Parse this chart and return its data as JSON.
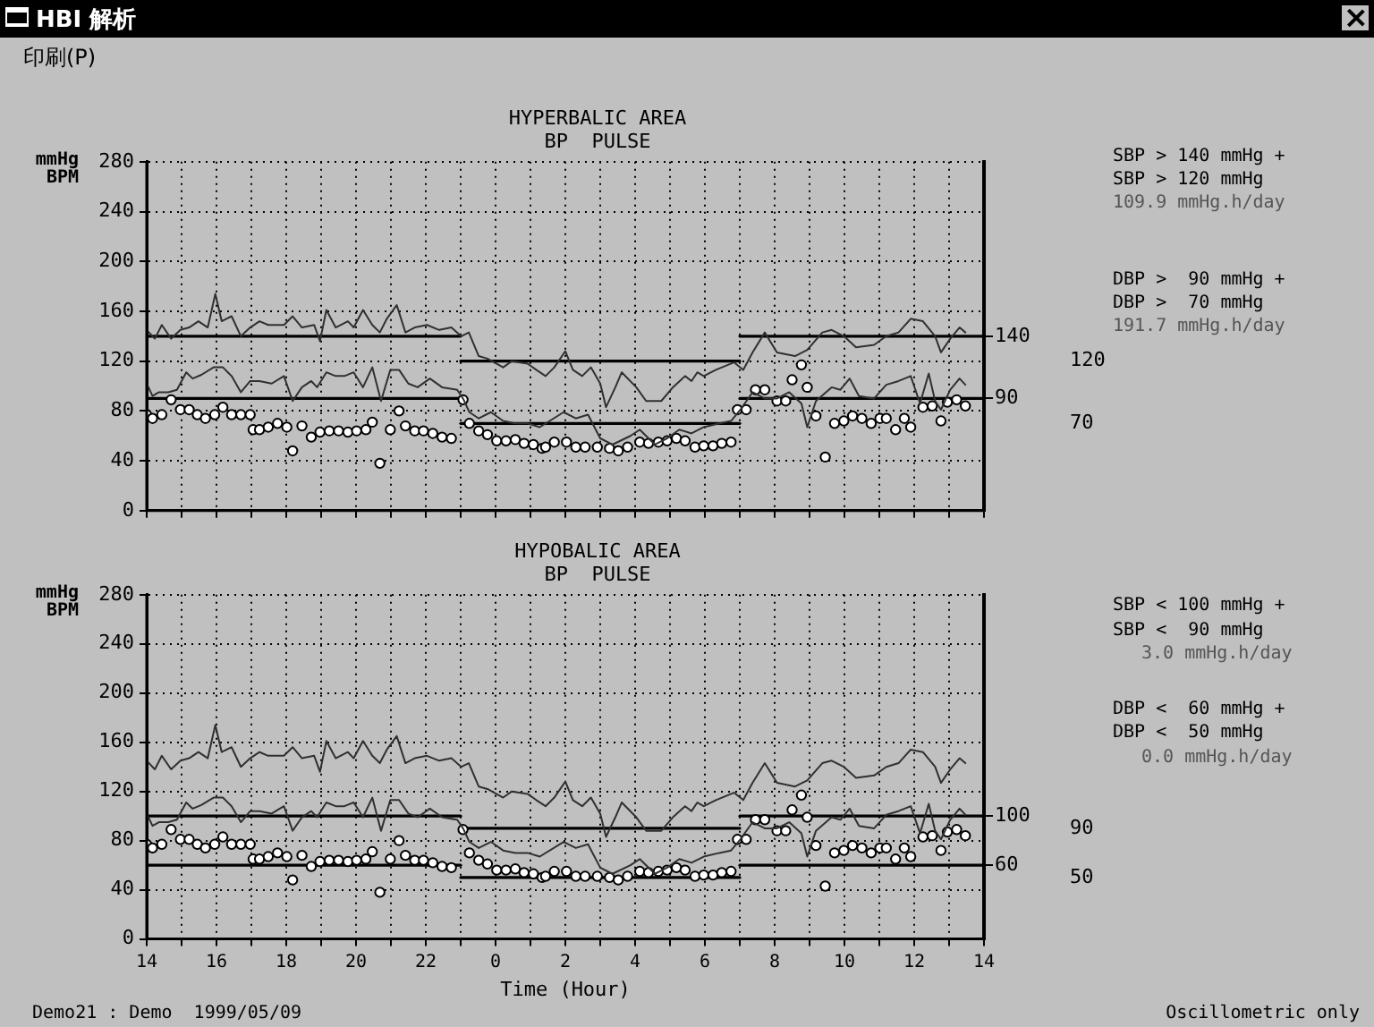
{
  "chart_data": [
    {
      "type": "line",
      "title": "HYPERBALIC AREA",
      "subtitle": "BP  PULSE",
      "ylabel": "mmHg BPM",
      "annotations": [
        "HBI 解析",
        "印刷(P)",
        "SBP > 140 mmHg +",
        "SBP > 120 mmHg",
        "109.9 mmHg.h/day",
        "DBP >  90 mmHg +",
        "DBP >  70 mmHg",
        "191.7 mmHg.h/day"
      ],
      "xlim": [
        "1999-05-09T14:00",
        "1999-05-10T14:00"
      ],
      "xticks": [
        {
          "value": "1999-05-09T14:00",
          "label": null
        },
        {
          "value": "1999-05-09T15:00",
          "label": null
        },
        {
          "value": "1999-05-09T16:00",
          "label": null
        },
        {
          "value": "1999-05-09T17:00",
          "label": null
        },
        {
          "value": "1999-05-09T18:00",
          "label": null
        },
        {
          "value": "1999-05-09T19:00",
          "label": null
        },
        {
          "value": "1999-05-09T20:00",
          "label": null
        },
        {
          "value": "1999-05-09T21:00",
          "label": null
        },
        {
          "value": "1999-05-09T22:00",
          "label": null
        },
        {
          "value": "1999-05-09T23:00",
          "label": null
        },
        {
          "value": "1999-05-10T00:00",
          "label": null
        },
        {
          "value": "1999-05-10T01:00",
          "label": null
        },
        {
          "value": "1999-05-10T02:00",
          "label": null
        },
        {
          "value": "1999-05-10T03:00",
          "label": null
        },
        {
          "value": "1999-05-10T04:00",
          "label": null
        },
        {
          "value": "1999-05-10T05:00",
          "label": null
        },
        {
          "value": "1999-05-10T06:00",
          "label": null
        },
        {
          "value": "1999-05-10T07:00",
          "label": null
        },
        {
          "value": "1999-05-10T08:00",
          "label": null
        },
        {
          "value": "1999-05-10T09:00",
          "label": null
        },
        {
          "value": "1999-05-10T10:00",
          "label": null
        },
        {
          "value": "1999-05-10T11:00",
          "label": null
        },
        {
          "value": "1999-05-10T12:00",
          "label": null
        },
        {
          "value": "1999-05-10T13:00",
          "label": null
        },
        {
          "value": "1999-05-10T14:00",
          "label": null
        }
      ],
      "ylim": [
        0,
        280
      ],
      "yticks": [
        0,
        40,
        80,
        120,
        160,
        200,
        240,
        280
      ],
      "y2lim": [
        0,
        280
      ],
      "y2ticks": [
        140,
        90
      ],
      "y3lim": [
        0,
        280
      ],
      "y3ticks": [
        120,
        70
      ],
      "grid": true,
      "legend": false,
      "tick_labels": "y",
      "series": [
        {
          "type": "line",
          "color": "#303030",
          "x": [
            "1999-05-09T14:00",
            "1999-05-09T14:14",
            "1999-05-09T14:26",
            "1999-05-09T14:42",
            "1999-05-09T14:58",
            "1999-05-09T15:13",
            "1999-05-09T15:29",
            "1999-05-09T15:45",
            "1999-05-09T15:58",
            "1999-05-09T16:09",
            "1999-05-09T16:26",
            "1999-05-09T16:42",
            "1999-05-09T16:58",
            "1999-05-09T17:14",
            "1999-05-09T17:29",
            "1999-05-09T17:56",
            "1999-05-09T18:11",
            "1999-05-09T18:27",
            "1999-05-09T18:48",
            "1999-05-09T18:58",
            "1999-05-09T19:09",
            "1999-05-09T19:25",
            "1999-05-09T19:46",
            "1999-05-09T19:56",
            "1999-05-09T20:12",
            "1999-05-09T20:28",
            "1999-05-09T20:41",
            "1999-05-09T20:53",
            "1999-05-09T21:10",
            "1999-05-09T21:25",
            "1999-05-09T21:41",
            "1999-05-09T22:02",
            "1999-05-09T22:23",
            "1999-05-09T22:44",
            "1999-05-09T23:01",
            "1999-05-09T23:14",
            "1999-05-09T23:31",
            "1999-05-09T23:46",
            "1999-05-10T00:13",
            "1999-05-10T00:28",
            "1999-05-10T00:55",
            "1999-05-10T01:10",
            "1999-05-10T01:26",
            "1999-05-10T01:41",
            "1999-05-10T02:00",
            "1999-05-10T02:13",
            "1999-05-10T02:29",
            "1999-05-10T02:44",
            "1999-05-10T03:00",
            "1999-05-10T03:10",
            "1999-05-10T03:26",
            "1999-05-10T03:37",
            "1999-05-10T04:02",
            "1999-05-10T04:19",
            "1999-05-10T04:45",
            "1999-05-10T05:05",
            "1999-05-10T05:26",
            "1999-05-10T05:37",
            "1999-05-10T05:47",
            "1999-05-10T05:58",
            "1999-05-10T06:19",
            "1999-05-10T06:50",
            "1999-05-10T07:06",
            "1999-05-10T07:22",
            "1999-05-10T07:43",
            "1999-05-10T08:04",
            "1999-05-10T08:35",
            "1999-05-10T08:56",
            "1999-05-10T09:22",
            "1999-05-10T09:38",
            "1999-05-10T09:59",
            "1999-05-10T10:20",
            "1999-05-10T10:51",
            "1999-05-10T11:12",
            "1999-05-10T11:33",
            "1999-05-10T11:54",
            "1999-05-10T12:15",
            "1999-05-10T12:36",
            "1999-05-10T12:46",
            "1999-05-10T13:02",
            "1999-05-10T13:18",
            "1999-05-10T13:28"
          ],
          "values": [
            145,
            138,
            149,
            138,
            145,
            147,
            152,
            147,
            174,
            152,
            156,
            140,
            147,
            152,
            149,
            149,
            156,
            147,
            149,
            136,
            161,
            147,
            152,
            147,
            161,
            149,
            143,
            154,
            165,
            143,
            147,
            149,
            145,
            147,
            140,
            143,
            124,
            122,
            115,
            120,
            118,
            113,
            108,
            115,
            128,
            113,
            108,
            115,
            102,
            83,
            99,
            111,
            99,
            88,
            88,
            99,
            108,
            104,
            111,
            108,
            113,
            119,
            113,
            127,
            143,
            127,
            124,
            129,
            143,
            145,
            140,
            131,
            133,
            140,
            143,
            154,
            152,
            140,
            127,
            138,
            147,
            143
          ]
        },
        {
          "type": "line",
          "color": "#303030",
          "x": [
            "1999-05-09T14:00",
            "1999-05-09T14:10",
            "1999-05-09T14:21",
            "1999-05-09T14:37",
            "1999-05-09T14:52",
            "1999-05-09T15:08",
            "1999-05-09T15:19",
            "1999-05-09T15:34",
            "1999-05-09T15:55",
            "1999-05-09T16:11",
            "1999-05-09T16:26",
            "1999-05-09T16:42",
            "1999-05-09T16:58",
            "1999-05-09T17:14",
            "1999-05-09T17:35",
            "1999-05-09T17:56",
            "1999-05-09T18:11",
            "1999-05-09T18:27",
            "1999-05-09T18:43",
            "1999-05-09T18:53",
            "1999-05-09T19:09",
            "1999-05-09T19:25",
            "1999-05-09T19:40",
            "1999-05-09T19:56",
            "1999-05-09T20:12",
            "1999-05-09T20:28",
            "1999-05-09T20:43",
            "1999-05-09T20:59",
            "1999-05-09T21:14",
            "1999-05-09T21:30",
            "1999-05-09T21:46",
            "1999-05-09T22:07",
            "1999-05-09T22:28",
            "1999-05-09T22:54",
            "1999-05-09T23:04",
            "1999-05-09T23:15",
            "1999-05-09T23:31",
            "1999-05-09T23:52",
            "1999-05-10T00:13",
            "1999-05-10T00:34",
            "1999-05-10T00:55",
            "1999-05-10T01:16",
            "1999-05-10T01:57",
            "1999-05-10T02:18",
            "1999-05-10T02:39",
            "1999-05-10T03:00",
            "1999-05-10T03:21",
            "1999-05-10T03:52",
            "1999-05-10T04:08",
            "1999-05-10T04:34",
            "1999-05-10T04:55",
            "1999-05-10T05:16",
            "1999-05-10T05:37",
            "1999-05-10T05:58",
            "1999-05-10T06:25",
            "1999-05-10T06:45",
            "1999-05-10T07:01",
            "1999-05-10T07:22",
            "1999-05-10T07:43",
            "1999-05-10T08:04",
            "1999-05-10T08:25",
            "1999-05-10T08:46",
            "1999-05-10T08:56",
            "1999-05-10T09:11",
            "1999-05-10T09:38",
            "1999-05-10T09:53",
            "1999-05-10T10:09",
            "1999-05-10T10:25",
            "1999-05-10T10:51",
            "1999-05-10T11:12",
            "1999-05-10T11:33",
            "1999-05-10T11:54",
            "1999-05-10T12:10",
            "1999-05-10T12:25",
            "1999-05-10T12:36",
            "1999-05-10T12:46",
            "1999-05-10T13:02",
            "1999-05-10T13:18",
            "1999-05-10T13:28"
          ],
          "values": [
            102,
            92,
            95,
            95,
            97,
            111,
            106,
            109,
            115,
            115,
            108,
            95,
            104,
            104,
            102,
            108,
            88,
            99,
            104,
            99,
            111,
            108,
            108,
            111,
            99,
            115,
            88,
            113,
            113,
            102,
            99,
            106,
            99,
            97,
            90,
            79,
            74,
            79,
            72,
            70,
            70,
            67,
            79,
            74,
            77,
            58,
            53,
            60,
            65,
            53,
            58,
            65,
            62,
            67,
            70,
            72,
            81,
            95,
            90,
            90,
            95,
            86,
            67,
            88,
            99,
            97,
            106,
            92,
            90,
            101,
            104,
            108,
            86,
            110,
            88,
            81,
            97,
            106,
            101
          ]
        },
        {
          "type": "scatter",
          "color": "#000000",
          "marker": "circle",
          "x": [
            "1999-05-09T14:00",
            "1999-05-09T14:10",
            "1999-05-09T14:26",
            "1999-05-09T14:42",
            "1999-05-09T14:58",
            "1999-05-09T15:13",
            "1999-05-09T15:27",
            "1999-05-09T15:41",
            "1999-05-09T15:57",
            "1999-05-09T16:11",
            "1999-05-09T16:26",
            "1999-05-09T16:42",
            "1999-05-09T16:58",
            "1999-05-09T17:03",
            "1999-05-09T17:14",
            "1999-05-09T17:29",
            "1999-05-09T17:45",
            "1999-05-09T18:01",
            "1999-05-09T18:11",
            "1999-05-09T18:27",
            "1999-05-09T18:43",
            "1999-05-09T18:58",
            "1999-05-09T19:14",
            "1999-05-09T19:30",
            "1999-05-09T19:46",
            "1999-05-09T20:01",
            "1999-05-09T20:17",
            "1999-05-09T20:28",
            "1999-05-09T20:41",
            "1999-05-09T20:59",
            "1999-05-09T21:14",
            "1999-05-09T21:25",
            "1999-05-09T21:41",
            "1999-05-09T21:56",
            "1999-05-09T22:12",
            "1999-05-09T22:28",
            "1999-05-09T22:44",
            "1999-05-09T23:04",
            "1999-05-09T23:15",
            "1999-05-09T23:31",
            "1999-05-09T23:46",
            "1999-05-10T00:02",
            "1999-05-10T00:18",
            "1999-05-10T00:34",
            "1999-05-10T00:49",
            "1999-05-10T01:05",
            "1999-05-10T01:20",
            "1999-05-10T01:26",
            "1999-05-10T01:41",
            "1999-05-10T02:02",
            "1999-05-10T02:18",
            "1999-05-10T02:34",
            "1999-05-10T02:55",
            "1999-05-10T03:16",
            "1999-05-10T03:31",
            "1999-05-10T03:47",
            "1999-05-10T04:08",
            "1999-05-10T04:23",
            "1999-05-10T04:40",
            "1999-05-10T04:55",
            "1999-05-10T05:11",
            "1999-05-10T05:26",
            "1999-05-10T05:43",
            "1999-05-10T05:58",
            "1999-05-10T06:14",
            "1999-05-10T06:29",
            "1999-05-10T06:45",
            "1999-05-10T06:56",
            "1999-05-10T07:11",
            "1999-05-10T07:27",
            "1999-05-10T07:43",
            "1999-05-10T08:04",
            "1999-05-10T08:19",
            "1999-05-10T08:30",
            "1999-05-10T08:46",
            "1999-05-10T08:56",
            "1999-05-10T09:11",
            "1999-05-10T09:27",
            "1999-05-10T09:43",
            "1999-05-10T09:59",
            "1999-05-10T10:14",
            "1999-05-10T10:30",
            "1999-05-10T10:46",
            "1999-05-10T11:01",
            "1999-05-10T11:12",
            "1999-05-10T11:28",
            "1999-05-10T11:43",
            "1999-05-10T11:54",
            "1999-05-10T12:15",
            "1999-05-10T12:31",
            "1999-05-10T12:46",
            "1999-05-10T12:57",
            "1999-05-10T13:13",
            "1999-05-10T13:28"
          ],
          "values": [
            77,
            74,
            77,
            89,
            81,
            81,
            77,
            74,
            77,
            83,
            77,
            77,
            77,
            65,
            65,
            67,
            70,
            67,
            48,
            68,
            59,
            63,
            64,
            64,
            63,
            64,
            65,
            71,
            38,
            65,
            80,
            68,
            64,
            64,
            62,
            59,
            58,
            89,
            70,
            64,
            61,
            56,
            56,
            57,
            54,
            53,
            50,
            51,
            55,
            55,
            51,
            51,
            51,
            50,
            48,
            51,
            55,
            54,
            55,
            56,
            58,
            56,
            51,
            52,
            52,
            54,
            55,
            81,
            81,
            97,
            97,
            88,
            88,
            105,
            117,
            99,
            76,
            43,
            70,
            72,
            76,
            74,
            70,
            74,
            74,
            65,
            74,
            67,
            83,
            84,
            72,
            87,
            89,
            84
          ]
        },
        {
          "type": "line",
          "color": "#000000",
          "x": [
            "1999-05-09T14:00",
            "1999-05-09T23:00"
          ],
          "values": [
            140,
            140
          ]
        },
        {
          "type": "line",
          "color": "#000000",
          "x": [
            "1999-05-09T23:00",
            "1999-05-10T07:00"
          ],
          "values": [
            120,
            120
          ]
        },
        {
          "type": "line",
          "color": "#000000",
          "x": [
            "1999-05-10T07:00",
            "1999-05-10T14:00"
          ],
          "values": [
            140,
            140
          ]
        },
        {
          "type": "line",
          "color": "#000000",
          "x": [
            "1999-05-09T14:00",
            "1999-05-09T23:00"
          ],
          "values": [
            90,
            90
          ]
        },
        {
          "type": "line",
          "color": "#000000",
          "x": [
            "1999-05-09T23:00",
            "1999-05-10T07:00"
          ],
          "values": [
            70,
            70
          ]
        },
        {
          "type": "line",
          "color": "#000000",
          "x": [
            "1999-05-10T07:00",
            "1999-05-10T14:00"
          ],
          "values": [
            90,
            90
          ]
        }
      ]
    },
    {
      "type": "line",
      "title": "HYPOBALIC AREA",
      "subtitle": "BP  PULSE",
      "ylabel": "mmHg BPM",
      "xlabel": "Time (Hour)",
      "annotations": [
        "SBP < 100 mmHg +",
        "SBP <  90 mmHg",
        "3.0 mmHg.h/day",
        "DBP <  60 mmHg +",
        "DBP <  50 mmHg",
        "0.0 mmHg.h/day",
        "Demo21 : Demo  1999/05/09",
        "Oscillometric only"
      ],
      "xlim": [
        "1999-05-09T14:00",
        "1999-05-10T14:00"
      ],
      "xticks": [
        {
          "value": "1999-05-09T14:00",
          "label": "14"
        },
        {
          "value": "1999-05-09T15:00",
          "label": null
        },
        {
          "value": "1999-05-09T16:00",
          "label": "16"
        },
        {
          "value": "1999-05-09T17:00",
          "label": null
        },
        {
          "value": "1999-05-09T18:00",
          "label": "18"
        },
        {
          "value": "1999-05-09T19:00",
          "label": null
        },
        {
          "value": "1999-05-09T20:00",
          "label": "20"
        },
        {
          "value": "1999-05-09T21:00",
          "label": null
        },
        {
          "value": "1999-05-09T22:00",
          "label": "22"
        },
        {
          "value": "1999-05-09T23:00",
          "label": null
        },
        {
          "value": "1999-05-10T00:00",
          "label": "0"
        },
        {
          "value": "1999-05-10T01:00",
          "label": null
        },
        {
          "value": "1999-05-10T02:00",
          "label": "2"
        },
        {
          "value": "1999-05-10T03:00",
          "label": null
        },
        {
          "value": "1999-05-10T04:00",
          "label": "4"
        },
        {
          "value": "1999-05-10T05:00",
          "label": null
        },
        {
          "value": "1999-05-10T06:00",
          "label": "6"
        },
        {
          "value": "1999-05-10T07:00",
          "label": null
        },
        {
          "value": "1999-05-10T08:00",
          "label": "8"
        },
        {
          "value": "1999-05-10T09:00",
          "label": null
        },
        {
          "value": "1999-05-10T10:00",
          "label": "10"
        },
        {
          "value": "1999-05-10T11:00",
          "label": null
        },
        {
          "value": "1999-05-10T12:00",
          "label": "12"
        },
        {
          "value": "1999-05-10T13:00",
          "label": null
        },
        {
          "value": "1999-05-10T14:00",
          "label": "14"
        }
      ],
      "ylim": [
        0,
        280
      ],
      "yticks": [
        0,
        40,
        80,
        120,
        160,
        200,
        240,
        280
      ],
      "y2lim": [
        0,
        280
      ],
      "y2ticks": [
        100,
        60
      ],
      "y3lim": [
        0,
        280
      ],
      "y3ticks": [
        90,
        50
      ],
      "grid": true,
      "legend": false,
      "series": [
        {
          "type": "line",
          "color": "#303030",
          "x": [
            "1999-05-09T14:00",
            "1999-05-09T14:14",
            "1999-05-09T14:26",
            "1999-05-09T14:42",
            "1999-05-09T14:58",
            "1999-05-09T15:13",
            "1999-05-09T15:29",
            "1999-05-09T15:45",
            "1999-05-09T15:58",
            "1999-05-09T16:09",
            "1999-05-09T16:26",
            "1999-05-09T16:42",
            "1999-05-09T16:58",
            "1999-05-09T17:14",
            "1999-05-09T17:29",
            "1999-05-09T17:56",
            "1999-05-09T18:11",
            "1999-05-09T18:27",
            "1999-05-09T18:48",
            "1999-05-09T18:58",
            "1999-05-09T19:09",
            "1999-05-09T19:25",
            "1999-05-09T19:46",
            "1999-05-09T19:56",
            "1999-05-09T20:12",
            "1999-05-09T20:28",
            "1999-05-09T20:41",
            "1999-05-09T20:53",
            "1999-05-09T21:10",
            "1999-05-09T21:25",
            "1999-05-09T21:41",
            "1999-05-09T22:02",
            "1999-05-09T22:23",
            "1999-05-09T22:44",
            "1999-05-09T23:01",
            "1999-05-09T23:14",
            "1999-05-09T23:31",
            "1999-05-09T23:46",
            "1999-05-10T00:13",
            "1999-05-10T00:28",
            "1999-05-10T00:55",
            "1999-05-10T01:10",
            "1999-05-10T01:26",
            "1999-05-10T01:41",
            "1999-05-10T02:00",
            "1999-05-10T02:13",
            "1999-05-10T02:29",
            "1999-05-10T02:44",
            "1999-05-10T03:00",
            "1999-05-10T03:10",
            "1999-05-10T03:26",
            "1999-05-10T03:37",
            "1999-05-10T04:02",
            "1999-05-10T04:19",
            "1999-05-10T04:45",
            "1999-05-10T05:05",
            "1999-05-10T05:26",
            "1999-05-10T05:37",
            "1999-05-10T05:47",
            "1999-05-10T05:58",
            "1999-05-10T06:19",
            "1999-05-10T06:50",
            "1999-05-10T07:06",
            "1999-05-10T07:22",
            "1999-05-10T07:43",
            "1999-05-10T08:04",
            "1999-05-10T08:35",
            "1999-05-10T08:56",
            "1999-05-10T09:22",
            "1999-05-10T09:38",
            "1999-05-10T09:59",
            "1999-05-10T10:20",
            "1999-05-10T10:51",
            "1999-05-10T11:12",
            "1999-05-10T11:33",
            "1999-05-10T11:54",
            "1999-05-10T12:15",
            "1999-05-10T12:36",
            "1999-05-10T12:46",
            "1999-05-10T13:02",
            "1999-05-10T13:18",
            "1999-05-10T13:28"
          ],
          "values": [
            145,
            138,
            149,
            138,
            145,
            147,
            152,
            147,
            174,
            152,
            156,
            140,
            147,
            152,
            149,
            149,
            156,
            147,
            149,
            136,
            161,
            147,
            152,
            147,
            161,
            149,
            143,
            154,
            165,
            143,
            147,
            149,
            145,
            147,
            140,
            143,
            124,
            122,
            115,
            120,
            118,
            113,
            108,
            115,
            128,
            113,
            108,
            115,
            102,
            83,
            99,
            111,
            99,
            88,
            88,
            99,
            108,
            104,
            111,
            108,
            113,
            119,
            113,
            127,
            143,
            127,
            124,
            129,
            143,
            145,
            140,
            131,
            133,
            140,
            143,
            154,
            152,
            140,
            127,
            138,
            147,
            143
          ]
        },
        {
          "type": "line",
          "color": "#303030",
          "x": [
            "1999-05-09T14:00",
            "1999-05-09T14:10",
            "1999-05-09T14:21",
            "1999-05-09T14:37",
            "1999-05-09T14:52",
            "1999-05-09T15:08",
            "1999-05-09T15:19",
            "1999-05-09T15:34",
            "1999-05-09T15:55",
            "1999-05-09T16:11",
            "1999-05-09T16:26",
            "1999-05-09T16:42",
            "1999-05-09T16:58",
            "1999-05-09T17:14",
            "1999-05-09T17:35",
            "1999-05-09T17:56",
            "1999-05-09T18:11",
            "1999-05-09T18:27",
            "1999-05-09T18:43",
            "1999-05-09T18:53",
            "1999-05-09T19:09",
            "1999-05-09T19:25",
            "1999-05-09T19:40",
            "1999-05-09T19:56",
            "1999-05-09T20:12",
            "1999-05-09T20:28",
            "1999-05-09T20:43",
            "1999-05-09T20:59",
            "1999-05-09T21:14",
            "1999-05-09T21:30",
            "1999-05-09T21:46",
            "1999-05-09T22:07",
            "1999-05-09T22:28",
            "1999-05-09T22:54",
            "1999-05-09T23:04",
            "1999-05-09T23:15",
            "1999-05-09T23:31",
            "1999-05-09T23:52",
            "1999-05-10T00:13",
            "1999-05-10T00:34",
            "1999-05-10T00:55",
            "1999-05-10T01:16",
            "1999-05-10T01:57",
            "1999-05-10T02:18",
            "1999-05-10T02:39",
            "1999-05-10T03:00",
            "1999-05-10T03:21",
            "1999-05-10T03:52",
            "1999-05-10T04:08",
            "1999-05-10T04:34",
            "1999-05-10T04:55",
            "1999-05-10T05:16",
            "1999-05-10T05:37",
            "1999-05-10T05:58",
            "1999-05-10T06:25",
            "1999-05-10T06:45",
            "1999-05-10T07:01",
            "1999-05-10T07:22",
            "1999-05-10T07:43",
            "1999-05-10T08:04",
            "1999-05-10T08:25",
            "1999-05-10T08:46",
            "1999-05-10T08:56",
            "1999-05-10T09:11",
            "1999-05-10T09:38",
            "1999-05-10T09:53",
            "1999-05-10T10:09",
            "1999-05-10T10:25",
            "1999-05-10T10:51",
            "1999-05-10T11:12",
            "1999-05-10T11:33",
            "1999-05-10T11:54",
            "1999-05-10T12:10",
            "1999-05-10T12:25",
            "1999-05-10T12:36",
            "1999-05-10T12:46",
            "1999-05-10T13:02",
            "1999-05-10T13:18",
            "1999-05-10T13:28"
          ],
          "values": [
            102,
            92,
            95,
            95,
            97,
            111,
            106,
            109,
            115,
            115,
            108,
            95,
            104,
            104,
            102,
            108,
            88,
            99,
            104,
            99,
            111,
            108,
            108,
            111,
            99,
            115,
            88,
            113,
            113,
            102,
            99,
            106,
            99,
            97,
            90,
            79,
            74,
            79,
            72,
            70,
            70,
            67,
            79,
            74,
            77,
            58,
            53,
            60,
            65,
            53,
            58,
            65,
            62,
            67,
            70,
            72,
            81,
            95,
            90,
            90,
            95,
            86,
            67,
            88,
            99,
            97,
            106,
            92,
            90,
            101,
            104,
            108,
            86,
            110,
            88,
            81,
            97,
            106,
            101
          ]
        },
        {
          "type": "scatter",
          "color": "#000000",
          "marker": "circle",
          "x": [
            "1999-05-09T14:00",
            "1999-05-09T14:10",
            "1999-05-09T14:26",
            "1999-05-09T14:42",
            "1999-05-09T14:58",
            "1999-05-09T15:13",
            "1999-05-09T15:27",
            "1999-05-09T15:41",
            "1999-05-09T15:57",
            "1999-05-09T16:11",
            "1999-05-09T16:26",
            "1999-05-09T16:42",
            "1999-05-09T16:58",
            "1999-05-09T17:03",
            "1999-05-09T17:14",
            "1999-05-09T17:29",
            "1999-05-09T17:45",
            "1999-05-09T18:01",
            "1999-05-09T18:11",
            "1999-05-09T18:27",
            "1999-05-09T18:43",
            "1999-05-09T18:58",
            "1999-05-09T19:14",
            "1999-05-09T19:30",
            "1999-05-09T19:46",
            "1999-05-09T20:01",
            "1999-05-09T20:17",
            "1999-05-09T20:28",
            "1999-05-09T20:41",
            "1999-05-09T20:59",
            "1999-05-09T21:14",
            "1999-05-09T21:25",
            "1999-05-09T21:41",
            "1999-05-09T21:56",
            "1999-05-09T22:12",
            "1999-05-09T22:28",
            "1999-05-09T22:44",
            "1999-05-09T23:04",
            "1999-05-09T23:15",
            "1999-05-09T23:31",
            "1999-05-09T23:46",
            "1999-05-10T00:02",
            "1999-05-10T00:18",
            "1999-05-10T00:34",
            "1999-05-10T00:49",
            "1999-05-10T01:05",
            "1999-05-10T01:20",
            "1999-05-10T01:26",
            "1999-05-10T01:41",
            "1999-05-10T02:02",
            "1999-05-10T02:18",
            "1999-05-10T02:34",
            "1999-05-10T02:55",
            "1999-05-10T03:16",
            "1999-05-10T03:31",
            "1999-05-10T03:47",
            "1999-05-10T04:08",
            "1999-05-10T04:23",
            "1999-05-10T04:40",
            "1999-05-10T04:55",
            "1999-05-10T05:11",
            "1999-05-10T05:26",
            "1999-05-10T05:43",
            "1999-05-10T05:58",
            "1999-05-10T06:14",
            "1999-05-10T06:29",
            "1999-05-10T06:45",
            "1999-05-10T06:56",
            "1999-05-10T07:11",
            "1999-05-10T07:27",
            "1999-05-10T07:43",
            "1999-05-10T08:04",
            "1999-05-10T08:19",
            "1999-05-10T08:30",
            "1999-05-10T08:46",
            "1999-05-10T08:56",
            "1999-05-10T09:11",
            "1999-05-10T09:27",
            "1999-05-10T09:43",
            "1999-05-10T09:59",
            "1999-05-10T10:14",
            "1999-05-10T10:30",
            "1999-05-10T10:46",
            "1999-05-10T11:01",
            "1999-05-10T11:12",
            "1999-05-10T11:28",
            "1999-05-10T11:43",
            "1999-05-10T11:54",
            "1999-05-10T12:15",
            "1999-05-10T12:31",
            "1999-05-10T12:46",
            "1999-05-10T12:57",
            "1999-05-10T13:13",
            "1999-05-10T13:28"
          ],
          "values": [
            77,
            74,
            77,
            89,
            81,
            81,
            77,
            74,
            77,
            83,
            77,
            77,
            77,
            65,
            65,
            67,
            70,
            67,
            48,
            68,
            59,
            63,
            64,
            64,
            63,
            64,
            65,
            71,
            38,
            65,
            80,
            68,
            64,
            64,
            62,
            59,
            58,
            89,
            70,
            64,
            61,
            56,
            56,
            57,
            54,
            53,
            50,
            51,
            55,
            55,
            51,
            51,
            51,
            50,
            48,
            51,
            55,
            54,
            55,
            56,
            58,
            56,
            51,
            52,
            52,
            54,
            55,
            81,
            81,
            97,
            97,
            88,
            88,
            105,
            117,
            99,
            76,
            43,
            70,
            72,
            76,
            74,
            70,
            74,
            74,
            65,
            74,
            67,
            83,
            84,
            72,
            87,
            89,
            84
          ]
        },
        {
          "type": "line",
          "color": "#000000",
          "x": [
            "1999-05-09T14:00",
            "1999-05-09T23:00"
          ],
          "values": [
            100,
            100
          ]
        },
        {
          "type": "line",
          "color": "#000000",
          "x": [
            "1999-05-09T23:00",
            "1999-05-10T07:00"
          ],
          "values": [
            90,
            90
          ]
        },
        {
          "type": "line",
          "color": "#000000",
          "x": [
            "1999-05-10T07:00",
            "1999-05-10T14:00"
          ],
          "values": [
            100,
            100
          ]
        },
        {
          "type": "line",
          "color": "#000000",
          "x": [
            "1999-05-09T14:00",
            "1999-05-09T23:00"
          ],
          "values": [
            60,
            60
          ]
        },
        {
          "type": "line",
          "color": "#000000",
          "x": [
            "1999-05-09T23:00",
            "1999-05-10T07:00"
          ],
          "values": [
            50,
            50
          ]
        },
        {
          "type": "line",
          "color": "#000000",
          "x": [
            "1999-05-10T07:00",
            "1999-05-10T14:00"
          ],
          "values": [
            60,
            60
          ]
        }
      ]
    }
  ]
}
